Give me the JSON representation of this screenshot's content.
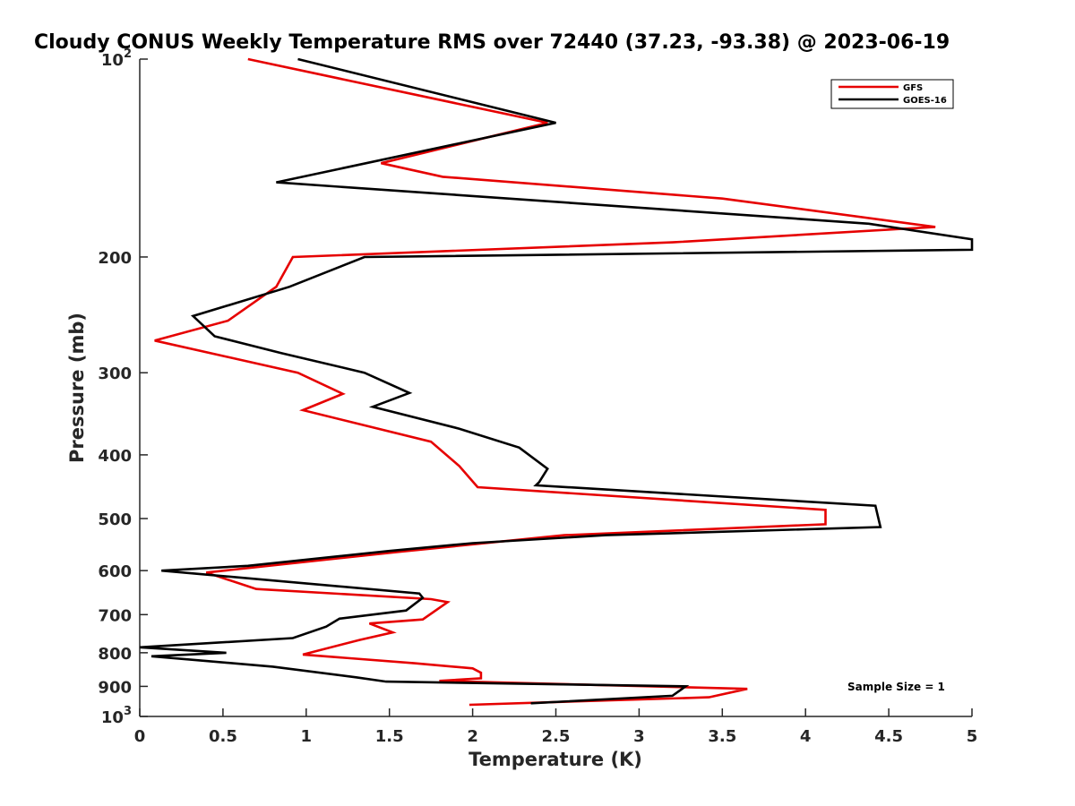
{
  "chart_data": {
    "type": "line",
    "title": "Cloudy CONUS Weekly Temperature RMS over 72440 (37.23, -93.38) @ 2023-06-19",
    "xlabel": "Temperature (K)",
    "ylabel": "Pressure (mb)",
    "xlim": [
      0,
      5
    ],
    "ylim": [
      100,
      1000
    ],
    "y_scale": "log",
    "y_reversed": true,
    "x_ticks": [
      "0",
      "0.5",
      "1",
      "1.5",
      "2",
      "2.5",
      "3",
      "3.5",
      "4",
      "4.5",
      "5"
    ],
    "y_ticks": [
      {
        "value": 100,
        "base": "10",
        "exp": "2"
      },
      {
        "value": 200,
        "label": "200"
      },
      {
        "value": 300,
        "label": "300"
      },
      {
        "value": 400,
        "label": "400"
      },
      {
        "value": 500,
        "label": "500"
      },
      {
        "value": 600,
        "label": "600"
      },
      {
        "value": 700,
        "label": "700"
      },
      {
        "value": 800,
        "label": "800"
      },
      {
        "value": 900,
        "label": "900"
      },
      {
        "value": 1000,
        "base": "10",
        "exp": "3"
      }
    ],
    "grid": false,
    "legend_position": "top-right",
    "annotation": "Sample Size = 1",
    "series": [
      {
        "name": "GFS",
        "color": "#e60000",
        "points": [
          [
            0.65,
            100
          ],
          [
            2.45,
            125
          ],
          [
            1.45,
            144
          ],
          [
            1.82,
            151
          ],
          [
            3.5,
            163
          ],
          [
            4.78,
            180
          ],
          [
            3.2,
            190
          ],
          [
            0.92,
            200
          ],
          [
            0.82,
            222
          ],
          [
            0.53,
            250
          ],
          [
            0.09,
            268
          ],
          [
            0.95,
            300
          ],
          [
            1.22,
            323
          ],
          [
            0.98,
            342
          ],
          [
            1.75,
            382
          ],
          [
            1.92,
            416
          ],
          [
            2.03,
            448
          ],
          [
            4.12,
            485
          ],
          [
            4.12,
            510
          ],
          [
            2.55,
            530
          ],
          [
            1.55,
            562
          ],
          [
            0.4,
            604
          ],
          [
            0.7,
            640
          ],
          [
            1.75,
            663
          ],
          [
            1.85,
            670
          ],
          [
            1.7,
            712
          ],
          [
            1.38,
            722
          ],
          [
            1.52,
            745
          ],
          [
            1.32,
            765
          ],
          [
            0.98,
            805
          ],
          [
            1.65,
            830
          ],
          [
            2.0,
            845
          ],
          [
            2.05,
            858
          ],
          [
            2.05,
            875
          ],
          [
            1.8,
            883
          ],
          [
            3.65,
            908
          ],
          [
            3.42,
            935
          ],
          [
            1.98,
            960
          ]
        ]
      },
      {
        "name": "GOES-16",
        "color": "#000000",
        "points": [
          [
            0.95,
            100
          ],
          [
            2.5,
            125
          ],
          [
            0.82,
            154
          ],
          [
            4.38,
            178
          ],
          [
            5.0,
            188
          ],
          [
            5.0,
            195
          ],
          [
            1.35,
            200
          ],
          [
            0.9,
            222
          ],
          [
            0.32,
            246
          ],
          [
            0.45,
            264
          ],
          [
            0.85,
            280
          ],
          [
            1.35,
            300
          ],
          [
            1.62,
            322
          ],
          [
            1.4,
            338
          ],
          [
            1.92,
            365
          ],
          [
            2.28,
            390
          ],
          [
            2.45,
            420
          ],
          [
            2.4,
            440
          ],
          [
            2.38,
            445
          ],
          [
            4.42,
            478
          ],
          [
            4.45,
            515
          ],
          [
            2.8,
            530
          ],
          [
            2.0,
            545
          ],
          [
            1.5,
            560
          ],
          [
            0.65,
            590
          ],
          [
            0.13,
            600
          ],
          [
            1.68,
            650
          ],
          [
            1.7,
            660
          ],
          [
            1.6,
            690
          ],
          [
            1.2,
            710
          ],
          [
            1.12,
            730
          ],
          [
            0.92,
            760
          ],
          [
            0.0,
            785
          ],
          [
            0.52,
            800
          ],
          [
            0.07,
            810
          ],
          [
            0.8,
            840
          ],
          [
            1.3,
            872
          ],
          [
            1.48,
            885
          ],
          [
            3.28,
            900
          ],
          [
            3.2,
            930
          ],
          [
            2.35,
            955
          ]
        ]
      }
    ]
  }
}
